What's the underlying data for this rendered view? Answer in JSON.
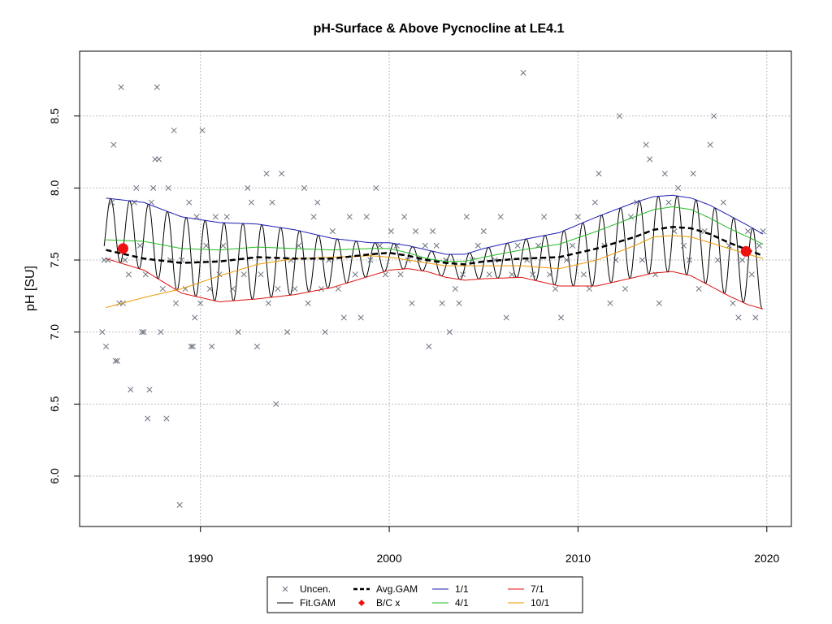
{
  "chart_data": {
    "type": "scatter",
    "title": "pH-Surface & Above Pycnocline at LE4.1",
    "xlabel": "",
    "ylabel": "pH [SU]",
    "xlim": [
      1983.6,
      2021.3
    ],
    "ylim": [
      5.65,
      8.95
    ],
    "xticks": [
      1990,
      2000,
      2010,
      2020
    ],
    "yticks": [
      6.0,
      6.5,
      7.0,
      7.5,
      8.0,
      8.5
    ],
    "grid": true,
    "legend_position": "bottom-center",
    "colors": {
      "points": "#6b7480",
      "fit": "#000000",
      "avg": "#000000",
      "bc": "#ee1111",
      "s1": "#1c1cb4",
      "s4": "#22bb22",
      "s7": "#dd1111",
      "s10": "#ee9900",
      "grid": "#bdbdbd"
    },
    "legend": [
      {
        "key": "uncen",
        "label": "Uncen."
      },
      {
        "key": "avg",
        "label": "Avg.GAM"
      },
      {
        "key": "s1",
        "label": "1/1"
      },
      {
        "key": "s7",
        "label": "7/1"
      },
      {
        "key": "fit",
        "label": "Fit.GAM"
      },
      {
        "key": "bc",
        "label": "B/C x"
      },
      {
        "key": "s4",
        "label": "4/1"
      },
      {
        "key": "s10",
        "label": "10/1"
      }
    ],
    "bc_points": [
      [
        1985.9,
        7.58
      ],
      [
        2018.9,
        7.56
      ]
    ],
    "series": [
      {
        "name": "Avg.GAM",
        "key": "avg",
        "x": [
          1985,
          1987,
          1989,
          1991,
          1993,
          1995,
          1997,
          1999,
          2000,
          2001,
          2002,
          2003,
          2004,
          2005,
          2007,
          2009,
          2011,
          2013,
          2014,
          2015,
          2016,
          2017,
          2018,
          2019,
          2019.8
        ],
        "y": [
          7.57,
          7.51,
          7.48,
          7.49,
          7.52,
          7.51,
          7.51,
          7.54,
          7.55,
          7.53,
          7.5,
          7.48,
          7.47,
          7.49,
          7.51,
          7.52,
          7.58,
          7.66,
          7.71,
          7.73,
          7.72,
          7.68,
          7.62,
          7.57,
          7.53
        ]
      },
      {
        "name": "1/1",
        "key": "s1",
        "x": [
          1985,
          1987,
          1989,
          1991,
          1993,
          1995,
          1997,
          1999,
          2000,
          2001,
          2002,
          2003,
          2004,
          2005,
          2007,
          2009,
          2011,
          2013,
          2014,
          2015,
          2016,
          2017,
          2018,
          2019,
          2019.8
        ],
        "y": [
          7.93,
          7.9,
          7.8,
          7.76,
          7.75,
          7.71,
          7.65,
          7.62,
          7.62,
          7.6,
          7.57,
          7.54,
          7.54,
          7.58,
          7.64,
          7.69,
          7.8,
          7.9,
          7.94,
          7.95,
          7.93,
          7.88,
          7.81,
          7.74,
          7.68
        ]
      },
      {
        "name": "4/1",
        "key": "s4",
        "x": [
          1985,
          1987,
          1989,
          1991,
          1993,
          1995,
          1997,
          1999,
          2000,
          2001,
          2002,
          2003,
          2004,
          2005,
          2007,
          2009,
          2011,
          2013,
          2014,
          2015,
          2016,
          2017,
          2018,
          2019,
          2019.8
        ],
        "y": [
          7.64,
          7.63,
          7.58,
          7.57,
          7.59,
          7.58,
          7.57,
          7.58,
          7.58,
          7.55,
          7.51,
          7.49,
          7.49,
          7.52,
          7.57,
          7.61,
          7.7,
          7.8,
          7.85,
          7.87,
          7.85,
          7.79,
          7.72,
          7.66,
          7.61
        ]
      },
      {
        "name": "7/1",
        "key": "s7",
        "x": [
          1985,
          1987,
          1989,
          1991,
          1993,
          1995,
          1997,
          1999,
          2000,
          2001,
          2002,
          2003,
          2004,
          2005,
          2007,
          2009,
          2011,
          2013,
          2014,
          2015,
          2016,
          2017,
          2018,
          2019,
          2019.8
        ],
        "y": [
          7.51,
          7.43,
          7.27,
          7.21,
          7.23,
          7.26,
          7.31,
          7.39,
          7.43,
          7.44,
          7.42,
          7.38,
          7.36,
          7.37,
          7.38,
          7.32,
          7.32,
          7.38,
          7.41,
          7.42,
          7.39,
          7.32,
          7.25,
          7.19,
          7.16
        ]
      },
      {
        "name": "10/1",
        "key": "s10",
        "x": [
          1985,
          1987,
          1989,
          1991,
          1993,
          1995,
          1997,
          1999,
          2000,
          2001,
          2002,
          2003,
          2004,
          2005,
          2007,
          2009,
          2011,
          2013,
          2014,
          2015,
          2016,
          2017,
          2018,
          2019,
          2019.8
        ],
        "y": [
          7.17,
          7.24,
          7.3,
          7.39,
          7.47,
          7.51,
          7.52,
          7.53,
          7.52,
          7.5,
          7.48,
          7.46,
          7.46,
          7.46,
          7.46,
          7.44,
          7.5,
          7.6,
          7.66,
          7.67,
          7.66,
          7.62,
          7.58,
          7.54,
          7.51
        ]
      }
    ],
    "fit_gam": {
      "name": "Fit.GAM",
      "x_start": 1984.9,
      "x_end": 2019.75,
      "cycles_per_year": 1,
      "phase_year": 0.25,
      "upper_from": "1/1",
      "lower_from": "7/1"
    },
    "points": [
      [
        1984.8,
        7.0
      ],
      [
        1984.9,
        7.5
      ],
      [
        1985.0,
        6.9
      ],
      [
        1985.1,
        7.5
      ],
      [
        1985.3,
        7.9
      ],
      [
        1985.4,
        8.3
      ],
      [
        1985.5,
        6.8
      ],
      [
        1985.6,
        6.8
      ],
      [
        1985.7,
        7.2
      ],
      [
        1985.8,
        8.7
      ],
      [
        1985.9,
        7.2
      ],
      [
        1986.0,
        7.5
      ],
      [
        1986.2,
        7.4
      ],
      [
        1986.3,
        6.6
      ],
      [
        1986.5,
        7.9
      ],
      [
        1986.6,
        8.0
      ],
      [
        1986.8,
        7.6
      ],
      [
        1986.9,
        7.0
      ],
      [
        1987.0,
        7.0
      ],
      [
        1987.1,
        7.4
      ],
      [
        1987.2,
        6.4
      ],
      [
        1987.3,
        6.6
      ],
      [
        1987.4,
        7.9
      ],
      [
        1987.5,
        8.0
      ],
      [
        1987.6,
        8.2
      ],
      [
        1987.7,
        8.7
      ],
      [
        1987.8,
        8.2
      ],
      [
        1987.9,
        7.0
      ],
      [
        1988.0,
        7.3
      ],
      [
        1988.2,
        6.4
      ],
      [
        1988.3,
        8.0
      ],
      [
        1988.4,
        7.5
      ],
      [
        1988.6,
        8.4
      ],
      [
        1988.7,
        7.2
      ],
      [
        1988.9,
        5.8
      ],
      [
        1989.0,
        7.5
      ],
      [
        1989.2,
        7.3
      ],
      [
        1989.4,
        7.9
      ],
      [
        1989.5,
        6.9
      ],
      [
        1989.6,
        6.9
      ],
      [
        1989.7,
        7.1
      ],
      [
        1989.8,
        7.8
      ],
      [
        1990.0,
        7.2
      ],
      [
        1990.1,
        8.4
      ],
      [
        1990.3,
        7.6
      ],
      [
        1990.5,
        7.3
      ],
      [
        1990.6,
        6.9
      ],
      [
        1990.8,
        7.8
      ],
      [
        1991.0,
        7.4
      ],
      [
        1991.2,
        7.6
      ],
      [
        1991.4,
        7.8
      ],
      [
        1991.7,
        7.3
      ],
      [
        1992.0,
        7.0
      ],
      [
        1992.3,
        7.4
      ],
      [
        1992.5,
        8.0
      ],
      [
        1992.7,
        7.9
      ],
      [
        1993.0,
        6.9
      ],
      [
        1993.2,
        7.4
      ],
      [
        1993.5,
        8.1
      ],
      [
        1993.6,
        7.2
      ],
      [
        1993.8,
        7.9
      ],
      [
        1994.0,
        6.5
      ],
      [
        1994.1,
        7.3
      ],
      [
        1994.3,
        8.1
      ],
      [
        1994.6,
        7.0
      ],
      [
        1994.8,
        7.5
      ],
      [
        1995.0,
        7.3
      ],
      [
        1995.2,
        7.6
      ],
      [
        1995.5,
        8.0
      ],
      [
        1995.7,
        7.2
      ],
      [
        1996.0,
        7.8
      ],
      [
        1996.2,
        7.9
      ],
      [
        1996.4,
        7.3
      ],
      [
        1996.6,
        7.0
      ],
      [
        1996.8,
        7.5
      ],
      [
        1997.0,
        7.7
      ],
      [
        1997.3,
        7.3
      ],
      [
        1997.6,
        7.1
      ],
      [
        1997.9,
        7.8
      ],
      [
        1998.2,
        7.4
      ],
      [
        1998.5,
        7.1
      ],
      [
        1998.8,
        7.8
      ],
      [
        1999.0,
        7.5
      ],
      [
        1999.3,
        8.0
      ],
      [
        1999.5,
        7.6
      ],
      [
        1999.8,
        7.4
      ],
      [
        2000.1,
        7.7
      ],
      [
        2000.4,
        7.6
      ],
      [
        2000.6,
        7.4
      ],
      [
        2000.8,
        7.8
      ],
      [
        2001.0,
        7.5
      ],
      [
        2001.2,
        7.2
      ],
      [
        2001.4,
        7.7
      ],
      [
        2001.6,
        7.5
      ],
      [
        2001.9,
        7.6
      ],
      [
        2002.1,
        6.9
      ],
      [
        2002.3,
        7.7
      ],
      [
        2002.5,
        7.6
      ],
      [
        2002.8,
        7.2
      ],
      [
        2003.0,
        7.5
      ],
      [
        2003.2,
        7.0
      ],
      [
        2003.5,
        7.3
      ],
      [
        2003.7,
        7.2
      ],
      [
        2003.9,
        7.4
      ],
      [
        2004.1,
        7.8
      ],
      [
        2004.4,
        7.5
      ],
      [
        2004.7,
        7.6
      ],
      [
        2005.0,
        7.7
      ],
      [
        2005.3,
        7.4
      ],
      [
        2005.6,
        7.5
      ],
      [
        2005.9,
        7.8
      ],
      [
        2006.2,
        7.1
      ],
      [
        2006.5,
        7.4
      ],
      [
        2006.8,
        7.6
      ],
      [
        2007.1,
        8.8
      ],
      [
        2007.3,
        7.5
      ],
      [
        2007.6,
        7.4
      ],
      [
        2007.9,
        7.6
      ],
      [
        2008.2,
        7.8
      ],
      [
        2008.5,
        7.4
      ],
      [
        2008.8,
        7.3
      ],
      [
        2009.1,
        7.1
      ],
      [
        2009.4,
        7.5
      ],
      [
        2009.7,
        7.6
      ],
      [
        2010.0,
        7.8
      ],
      [
        2010.3,
        7.4
      ],
      [
        2010.6,
        7.3
      ],
      [
        2010.9,
        7.9
      ],
      [
        2011.1,
        8.1
      ],
      [
        2011.4,
        7.6
      ],
      [
        2011.7,
        7.2
      ],
      [
        2012.0,
        7.5
      ],
      [
        2012.2,
        8.5
      ],
      [
        2012.5,
        7.3
      ],
      [
        2012.8,
        7.8
      ],
      [
        2013.1,
        7.9
      ],
      [
        2013.4,
        7.5
      ],
      [
        2013.6,
        8.3
      ],
      [
        2013.8,
        8.2
      ],
      [
        2014.1,
        7.4
      ],
      [
        2014.3,
        7.2
      ],
      [
        2014.6,
        8.1
      ],
      [
        2014.8,
        7.9
      ],
      [
        2015.1,
        7.7
      ],
      [
        2015.3,
        8.0
      ],
      [
        2015.6,
        7.6
      ],
      [
        2015.9,
        7.5
      ],
      [
        2016.1,
        8.1
      ],
      [
        2016.4,
        7.3
      ],
      [
        2016.7,
        7.7
      ],
      [
        2017.0,
        8.3
      ],
      [
        2017.2,
        8.5
      ],
      [
        2017.4,
        7.5
      ],
      [
        2017.7,
        7.9
      ],
      [
        2018.0,
        7.6
      ],
      [
        2018.2,
        7.2
      ],
      [
        2018.5,
        7.1
      ],
      [
        2018.7,
        7.5
      ],
      [
        2019.0,
        7.7
      ],
      [
        2019.2,
        7.4
      ],
      [
        2019.4,
        7.1
      ],
      [
        2019.6,
        7.6
      ],
      [
        2019.8,
        7.7
      ]
    ]
  }
}
